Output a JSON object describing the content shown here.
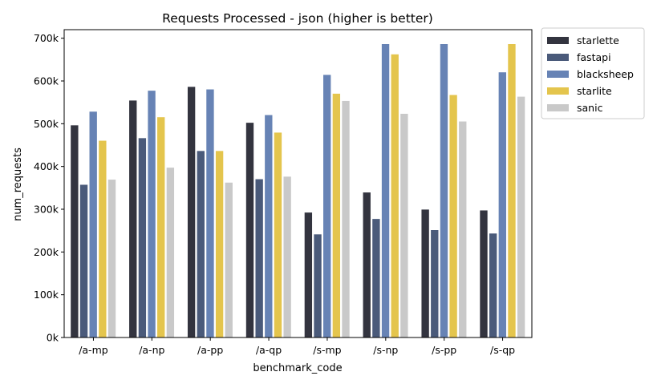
{
  "chart_data": {
    "type": "bar",
    "title": "Requests Processed - json (higher is better)",
    "xlabel": "benchmark_code",
    "ylabel": "num_requests",
    "categories": [
      "/a-mp",
      "/a-np",
      "/a-pp",
      "/a-qp",
      "/s-mp",
      "/s-np",
      "/s-pp",
      "/s-qp"
    ],
    "ylim": [
      0,
      720000
    ],
    "yticks": [
      0,
      100000,
      200000,
      300000,
      400000,
      500000,
      600000,
      700000
    ],
    "ytick_labels": [
      "0k",
      "100k",
      "200k",
      "300k",
      "400k",
      "500k",
      "600k",
      "700k"
    ],
    "grid": false,
    "legend_position": "outside-top-right",
    "series": [
      {
        "name": "starlette",
        "color": "#33343f",
        "values": [
          497000,
          555000,
          587000,
          503000,
          293000,
          340000,
          300000,
          298000
        ]
      },
      {
        "name": "fastapi",
        "color": "#4a5a7a",
        "values": [
          358000,
          467000,
          437000,
          371000,
          242000,
          278000,
          252000,
          244000
        ]
      },
      {
        "name": "blacksheep",
        "color": "#6783b5",
        "values": [
          529000,
          578000,
          581000,
          521000,
          615000,
          687000,
          687000,
          621000
        ]
      },
      {
        "name": "starlite",
        "color": "#e4c54d",
        "values": [
          461000,
          516000,
          437000,
          480000,
          571000,
          663000,
          568000,
          687000
        ]
      },
      {
        "name": "sanic",
        "color": "#c9c9c9",
        "values": [
          370000,
          398000,
          363000,
          377000,
          554000,
          524000,
          506000,
          564000
        ]
      }
    ]
  }
}
